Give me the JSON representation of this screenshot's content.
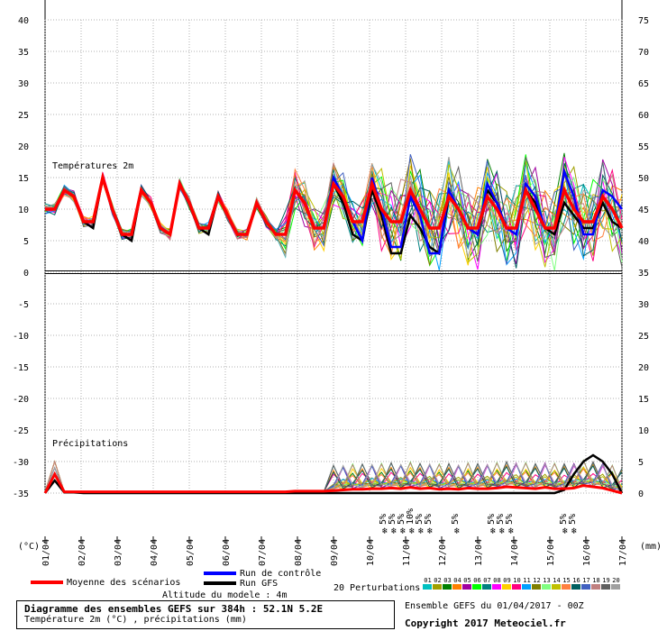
{
  "chart_data": {
    "type": "line",
    "title": "Diagramme des ensembles GEFS sur 384h : 52.1N 5.2E",
    "subtitle": "Température 2m (°C) , précipitations (mm)",
    "panel_labels": {
      "temperature": "Températures 2m",
      "precipitation": "Précipitations"
    },
    "left_axis": {
      "unit": "(°C)",
      "ticks": [
        40,
        35,
        30,
        25,
        20,
        15,
        10,
        5,
        0,
        -5,
        -10,
        -15,
        -20,
        -25,
        -30,
        -35
      ],
      "range": [
        -35,
        40
      ]
    },
    "right_axis": {
      "unit": "(mm)",
      "ticks": [
        75,
        70,
        65,
        60,
        55,
        50,
        45,
        40,
        35,
        30,
        25,
        20,
        15,
        10,
        5,
        0
      ],
      "range": [
        0,
        75
      ]
    },
    "x": [
      "01/04",
      "02/04",
      "03/04",
      "04/04",
      "05/04",
      "06/04",
      "07/04",
      "08/04",
      "09/04",
      "10/04",
      "11/04",
      "12/04",
      "13/04",
      "14/04",
      "15/04",
      "16/04",
      "17/04"
    ],
    "grid": true,
    "temperature_series": [
      {
        "name": "Moyenne des scénarios",
        "color": "#ff0000",
        "values": [
          10,
          10,
          13,
          12,
          8,
          8,
          15,
          10,
          6,
          6,
          13,
          11,
          7,
          6,
          14,
          11,
          7,
          7,
          12,
          9,
          6,
          6,
          11,
          8,
          6,
          6,
          13,
          11,
          7,
          7,
          14,
          12,
          8,
          8,
          14,
          10,
          8,
          8,
          13,
          10,
          7,
          7,
          12,
          10,
          7,
          7,
          12,
          10,
          7,
          7,
          13,
          10,
          7,
          7,
          13,
          10,
          8,
          8,
          12,
          10,
          7
        ]
      },
      {
        "name": "Run de contrôle",
        "color": "#0000ff",
        "values": [
          10,
          10,
          13,
          12,
          8,
          8,
          15,
          10,
          6,
          6,
          13,
          11,
          7,
          6,
          14,
          11,
          7,
          7,
          12,
          9,
          6,
          6,
          11,
          8,
          6,
          6,
          13,
          11,
          7,
          7,
          15,
          12,
          8,
          5,
          15,
          10,
          4,
          4,
          12,
          9,
          3,
          3,
          13,
          10,
          7,
          6,
          14,
          11,
          7,
          6,
          14,
          12,
          7,
          7,
          16,
          12,
          6,
          6,
          13,
          12,
          10
        ]
      },
      {
        "name": "Run GFS",
        "color": "#000000",
        "values": [
          10,
          10,
          13,
          12,
          8,
          7,
          15,
          10,
          6,
          5,
          13,
          11,
          7,
          6,
          14,
          11,
          7,
          6,
          12,
          9,
          6,
          6,
          11,
          8,
          6,
          6,
          13,
          11,
          7,
          7,
          14,
          11,
          6,
          5,
          13,
          9,
          3,
          3,
          9,
          7,
          4,
          3,
          12,
          10,
          7,
          6,
          13,
          11,
          7,
          7,
          13,
          11,
          7,
          6,
          11,
          9,
          7,
          7,
          11,
          8,
          7
        ]
      }
    ],
    "perturbation_count": 20,
    "precip_series": [
      {
        "name": "Moyenne des scénarios",
        "color": "#ff0000",
        "values": [
          0,
          3,
          0.2,
          0.2,
          0.2,
          0.2,
          0.2,
          0.2,
          0.2,
          0.2,
          0.2,
          0.2,
          0.2,
          0.2,
          0.2,
          0.2,
          0.2,
          0.2,
          0.2,
          0.2,
          0.2,
          0.2,
          0.2,
          0.2,
          0.2,
          0.2,
          0.3,
          0.3,
          0.3,
          0.3,
          0.4,
          0.5,
          0.6,
          0.6,
          0.7,
          0.7,
          0.8,
          0.7,
          0.9,
          0.7,
          0.8,
          0.6,
          0.7,
          0.6,
          0.8,
          0.7,
          0.7,
          0.8,
          1,
          0.9,
          0.8,
          0.7,
          0.9,
          0.7,
          0.7,
          0.8,
          1.2,
          1,
          0.8,
          0.4,
          0
        ]
      },
      {
        "name": "Run GFS",
        "color": "#000000",
        "values": [
          0,
          2,
          0.1,
          0.1,
          0,
          0,
          0,
          0,
          0,
          0,
          0,
          0,
          0,
          0,
          0,
          0,
          0,
          0,
          0,
          0,
          0,
          0,
          0,
          0,
          0,
          0,
          0,
          0,
          0,
          0,
          0,
          0,
          0,
          0,
          0,
          0,
          0,
          0,
          0,
          0,
          0,
          0,
          0,
          0,
          0,
          0,
          0,
          0,
          0,
          0,
          0,
          0,
          0,
          0,
          0.5,
          3,
          5,
          6,
          5,
          3,
          0
        ]
      }
    ],
    "snow_markers": [
      {
        "day": "10/04",
        "labels": [
          "5%",
          "5%",
          "5%",
          "10%",
          "5%",
          "5%"
        ]
      },
      {
        "day": "12/04",
        "labels": [
          "5%"
        ]
      },
      {
        "day": "13/04",
        "labels": [
          "5%",
          "5%",
          "5%"
        ]
      },
      {
        "day": "15/04",
        "labels": [
          "5%",
          "5%"
        ]
      }
    ]
  },
  "legend": {
    "mean_label": "Moyenne des scénarios",
    "control_label": "Run de contrôle",
    "gfs_label": "Run GFS",
    "perturbations_label": "20 Perturbations",
    "perturbation_ids": [
      "01",
      "02",
      "03",
      "04",
      "05",
      "06",
      "07",
      "08",
      "09",
      "10",
      "11",
      "12",
      "13",
      "14",
      "15",
      "16",
      "17",
      "18",
      "19",
      "20"
    ],
    "perturbation_colors": [
      "#00c0c0",
      "#a0a000",
      "#008000",
      "#ff8000",
      "#a000a0",
      "#00ff00",
      "#008080",
      "#ff00ff",
      "#ffd000",
      "#ff0080",
      "#00a0ff",
      "#808000",
      "#80ff80",
      "#c0c000",
      "#ff8040",
      "#006060",
      "#4060c0",
      "#c08080",
      "#606060",
      "#a0a0a0"
    ],
    "altitude_label": "Altitude du modele : 4m"
  },
  "footer": {
    "title": "Diagramme des ensembles GEFS sur 384h : 52.1N 5.2E",
    "subtitle": "Température 2m (°C) , précipitations (mm)",
    "ensemble_label": "Ensemble GEFS du 01/04/2017 - 00Z",
    "copyright": "Copyright 2017 Meteociel.fr"
  }
}
